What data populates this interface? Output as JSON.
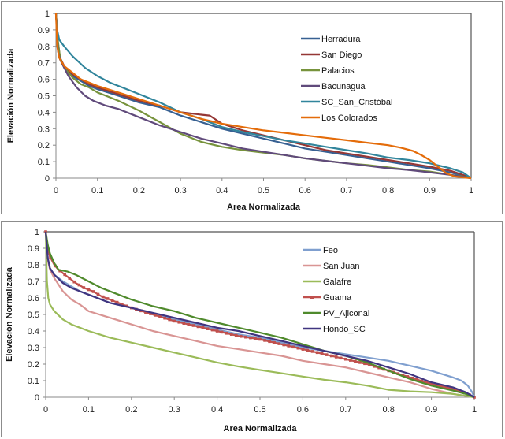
{
  "chart_data": [
    {
      "type": "line",
      "title": "",
      "xlabel": "Area Normalizada",
      "ylabel": "Elevación Normalizada",
      "xlim": [
        0,
        1
      ],
      "ylim": [
        0,
        1
      ],
      "xticks": [
        "0",
        "0.1",
        "0.2",
        "0.3",
        "0.4",
        "0.5",
        "0.6",
        "0.7",
        "0.8",
        "0.9",
        "1"
      ],
      "yticks": [
        "0",
        "0.1",
        "0.2",
        "0.3",
        "0.4",
        "0.5",
        "0.6",
        "0.7",
        "0.8",
        "0.9",
        "1"
      ],
      "grid": false,
      "legend": "right-inside",
      "series": [
        {
          "name": "Herradura",
          "color": "#376092",
          "marker": false,
          "x": [
            0,
            0.005,
            0.01,
            0.02,
            0.04,
            0.06,
            0.08,
            0.1,
            0.15,
            0.2,
            0.25,
            0.3,
            0.35,
            0.4,
            0.45,
            0.5,
            0.55,
            0.6,
            0.65,
            0.7,
            0.75,
            0.8,
            0.85,
            0.9,
            0.95,
            0.98,
            1.0
          ],
          "y": [
            1.0,
            0.8,
            0.72,
            0.67,
            0.62,
            0.59,
            0.56,
            0.54,
            0.5,
            0.46,
            0.43,
            0.38,
            0.34,
            0.3,
            0.27,
            0.24,
            0.21,
            0.18,
            0.16,
            0.14,
            0.12,
            0.1,
            0.08,
            0.06,
            0.035,
            0.015,
            0.0
          ]
        },
        {
          "name": "San Diego",
          "color": "#953735",
          "marker": false,
          "x": [
            0,
            0.005,
            0.01,
            0.02,
            0.04,
            0.06,
            0.08,
            0.1,
            0.15,
            0.2,
            0.25,
            0.3,
            0.35,
            0.37,
            0.4,
            0.45,
            0.5,
            0.55,
            0.6,
            0.65,
            0.7,
            0.75,
            0.8,
            0.85,
            0.9,
            0.95,
            0.98,
            1.0
          ],
          "y": [
            1.0,
            0.82,
            0.73,
            0.68,
            0.63,
            0.6,
            0.57,
            0.55,
            0.51,
            0.47,
            0.44,
            0.4,
            0.385,
            0.38,
            0.33,
            0.29,
            0.26,
            0.23,
            0.2,
            0.17,
            0.15,
            0.13,
            0.11,
            0.09,
            0.07,
            0.045,
            0.02,
            0.0
          ]
        },
        {
          "name": "Palacios",
          "color": "#77933c",
          "marker": false,
          "x": [
            0,
            0.005,
            0.01,
            0.02,
            0.04,
            0.06,
            0.08,
            0.1,
            0.15,
            0.2,
            0.25,
            0.3,
            0.35,
            0.4,
            0.45,
            0.5,
            0.55,
            0.6,
            0.65,
            0.7,
            0.75,
            0.8,
            0.85,
            0.9,
            0.95,
            0.98,
            1.0
          ],
          "y": [
            1.0,
            0.83,
            0.73,
            0.67,
            0.61,
            0.57,
            0.55,
            0.52,
            0.47,
            0.41,
            0.34,
            0.27,
            0.22,
            0.19,
            0.17,
            0.155,
            0.14,
            0.12,
            0.105,
            0.09,
            0.08,
            0.065,
            0.05,
            0.04,
            0.02,
            0.01,
            0.0
          ]
        },
        {
          "name": "Bacunagua",
          "color": "#604a7b",
          "marker": false,
          "x": [
            0,
            0.005,
            0.01,
            0.02,
            0.03,
            0.05,
            0.07,
            0.09,
            0.12,
            0.15,
            0.2,
            0.25,
            0.3,
            0.35,
            0.4,
            0.45,
            0.5,
            0.55,
            0.6,
            0.65,
            0.7,
            0.75,
            0.8,
            0.85,
            0.9,
            0.95,
            0.98,
            1.0
          ],
          "y": [
            1.0,
            0.77,
            0.72,
            0.67,
            0.62,
            0.55,
            0.5,
            0.47,
            0.44,
            0.42,
            0.37,
            0.32,
            0.28,
            0.24,
            0.21,
            0.18,
            0.16,
            0.14,
            0.12,
            0.105,
            0.09,
            0.075,
            0.06,
            0.05,
            0.035,
            0.02,
            0.008,
            0.0
          ]
        },
        {
          "name": "SC_San_Cristóbal",
          "color": "#31859c",
          "marker": false,
          "x": [
            0,
            0.003,
            0.008,
            0.02,
            0.04,
            0.07,
            0.1,
            0.13,
            0.16,
            0.2,
            0.25,
            0.3,
            0.35,
            0.4,
            0.45,
            0.5,
            0.55,
            0.6,
            0.65,
            0.7,
            0.75,
            0.8,
            0.85,
            0.9,
            0.95,
            0.98,
            1.0
          ],
          "y": [
            1.0,
            0.9,
            0.84,
            0.8,
            0.74,
            0.67,
            0.62,
            0.58,
            0.55,
            0.51,
            0.46,
            0.4,
            0.36,
            0.31,
            0.28,
            0.255,
            0.23,
            0.21,
            0.19,
            0.17,
            0.15,
            0.125,
            0.11,
            0.09,
            0.06,
            0.035,
            0.0
          ]
        },
        {
          "name": "Los Colorados",
          "color": "#e46c0a",
          "marker": false,
          "x": [
            0,
            0.003,
            0.008,
            0.02,
            0.04,
            0.06,
            0.08,
            0.1,
            0.15,
            0.2,
            0.25,
            0.3,
            0.35,
            0.4,
            0.45,
            0.5,
            0.55,
            0.6,
            0.65,
            0.7,
            0.75,
            0.8,
            0.83,
            0.86,
            0.88,
            0.9,
            0.92,
            0.94,
            0.96,
            0.98,
            1.0
          ],
          "y": [
            1.0,
            0.8,
            0.73,
            0.68,
            0.64,
            0.6,
            0.58,
            0.56,
            0.52,
            0.48,
            0.44,
            0.4,
            0.36,
            0.33,
            0.31,
            0.29,
            0.275,
            0.26,
            0.245,
            0.23,
            0.215,
            0.2,
            0.185,
            0.165,
            0.14,
            0.11,
            0.07,
            0.03,
            0.01,
            0.005,
            0.0
          ]
        }
      ]
    },
    {
      "type": "line",
      "title": "",
      "xlabel": "Area Normalizada",
      "ylabel": "Elevación Normalizada",
      "xlim": [
        0,
        1
      ],
      "ylim": [
        0,
        1
      ],
      "xticks": [
        "0",
        "0.1",
        "0.2",
        "0.3",
        "0.4",
        "0.5",
        "0.6",
        "0.7",
        "0.8",
        "0.9",
        "1"
      ],
      "yticks": [
        "0",
        "0.1",
        "0.2",
        "0.3",
        "0.4",
        "0.5",
        "0.6",
        "0.7",
        "0.8",
        "0.9",
        "1"
      ],
      "grid": false,
      "legend": "right-inside",
      "series": [
        {
          "name": "Feo",
          "color": "#7f9fcf",
          "marker": false,
          "x": [
            0,
            0.005,
            0.01,
            0.02,
            0.04,
            0.06,
            0.08,
            0.1,
            0.15,
            0.2,
            0.25,
            0.3,
            0.35,
            0.4,
            0.45,
            0.5,
            0.55,
            0.6,
            0.65,
            0.7,
            0.75,
            0.8,
            0.85,
            0.9,
            0.95,
            0.97,
            0.985,
            0.995,
            1.0
          ],
          "y": [
            1.0,
            0.84,
            0.78,
            0.74,
            0.7,
            0.67,
            0.64,
            0.62,
            0.57,
            0.54,
            0.5,
            0.47,
            0.44,
            0.41,
            0.38,
            0.36,
            0.33,
            0.3,
            0.28,
            0.26,
            0.24,
            0.22,
            0.19,
            0.16,
            0.12,
            0.1,
            0.07,
            0.03,
            0.0
          ]
        },
        {
          "name": "San Juan",
          "color": "#d99594",
          "marker": false,
          "x": [
            0,
            0.005,
            0.01,
            0.02,
            0.04,
            0.06,
            0.08,
            0.1,
            0.15,
            0.2,
            0.25,
            0.3,
            0.35,
            0.4,
            0.45,
            0.5,
            0.55,
            0.6,
            0.65,
            0.7,
            0.75,
            0.8,
            0.85,
            0.9,
            0.95,
            1.0
          ],
          "y": [
            1.0,
            0.83,
            0.77,
            0.72,
            0.64,
            0.59,
            0.56,
            0.52,
            0.48,
            0.44,
            0.4,
            0.37,
            0.34,
            0.31,
            0.29,
            0.27,
            0.25,
            0.22,
            0.2,
            0.18,
            0.15,
            0.12,
            0.09,
            0.05,
            0.02,
            0.0
          ]
        },
        {
          "name": "Galafre",
          "color": "#9bbb59",
          "marker": false,
          "x": [
            0,
            0.003,
            0.006,
            0.01,
            0.02,
            0.04,
            0.06,
            0.08,
            0.1,
            0.15,
            0.2,
            0.25,
            0.3,
            0.35,
            0.4,
            0.45,
            0.5,
            0.55,
            0.6,
            0.65,
            0.7,
            0.75,
            0.8,
            0.85,
            0.9,
            0.95,
            1.0
          ],
          "y": [
            1.0,
            0.7,
            0.6,
            0.56,
            0.52,
            0.47,
            0.44,
            0.42,
            0.4,
            0.36,
            0.33,
            0.3,
            0.27,
            0.24,
            0.21,
            0.185,
            0.165,
            0.145,
            0.125,
            0.105,
            0.09,
            0.07,
            0.045,
            0.035,
            0.03,
            0.02,
            0.0
          ]
        },
        {
          "name": "Guama",
          "color": "#c0504d",
          "marker": true,
          "x": [
            0,
            0.005,
            0.01,
            0.02,
            0.03,
            0.05,
            0.07,
            0.09,
            0.11,
            0.13,
            0.15,
            0.2,
            0.25,
            0.3,
            0.35,
            0.4,
            0.45,
            0.5,
            0.55,
            0.6,
            0.65,
            0.7,
            0.75,
            0.8,
            0.85,
            0.9,
            0.95,
            0.98,
            1.0
          ],
          "y": [
            1.0,
            0.9,
            0.85,
            0.8,
            0.77,
            0.73,
            0.69,
            0.66,
            0.64,
            0.61,
            0.59,
            0.54,
            0.5,
            0.46,
            0.43,
            0.4,
            0.37,
            0.35,
            0.32,
            0.29,
            0.26,
            0.23,
            0.2,
            0.16,
            0.12,
            0.08,
            0.05,
            0.025,
            0.0
          ]
        },
        {
          "name": "PV_Ajiconal",
          "color": "#4f8a2c",
          "marker": false,
          "x": [
            0,
            0.005,
            0.01,
            0.02,
            0.03,
            0.05,
            0.07,
            0.1,
            0.13,
            0.16,
            0.2,
            0.25,
            0.3,
            0.35,
            0.4,
            0.45,
            0.5,
            0.55,
            0.6,
            0.65,
            0.7,
            0.75,
            0.8,
            0.85,
            0.9,
            0.95,
            0.98,
            1.0
          ],
          "y": [
            1.0,
            0.92,
            0.87,
            0.81,
            0.77,
            0.76,
            0.74,
            0.7,
            0.66,
            0.63,
            0.59,
            0.55,
            0.52,
            0.48,
            0.45,
            0.42,
            0.39,
            0.36,
            0.32,
            0.28,
            0.25,
            0.21,
            0.16,
            0.11,
            0.07,
            0.04,
            0.02,
            0.0
          ]
        },
        {
          "name": "Hondo_SC",
          "color": "#403580",
          "marker": false,
          "x": [
            0,
            0.005,
            0.01,
            0.02,
            0.04,
            0.06,
            0.08,
            0.1,
            0.15,
            0.2,
            0.25,
            0.3,
            0.35,
            0.4,
            0.45,
            0.5,
            0.55,
            0.6,
            0.65,
            0.7,
            0.75,
            0.8,
            0.85,
            0.9,
            0.95,
            0.98,
            1.0
          ],
          "y": [
            1.0,
            0.84,
            0.78,
            0.74,
            0.69,
            0.66,
            0.64,
            0.62,
            0.57,
            0.54,
            0.51,
            0.48,
            0.45,
            0.42,
            0.4,
            0.37,
            0.34,
            0.31,
            0.28,
            0.25,
            0.22,
            0.18,
            0.14,
            0.09,
            0.06,
            0.03,
            0.0
          ]
        }
      ]
    }
  ]
}
